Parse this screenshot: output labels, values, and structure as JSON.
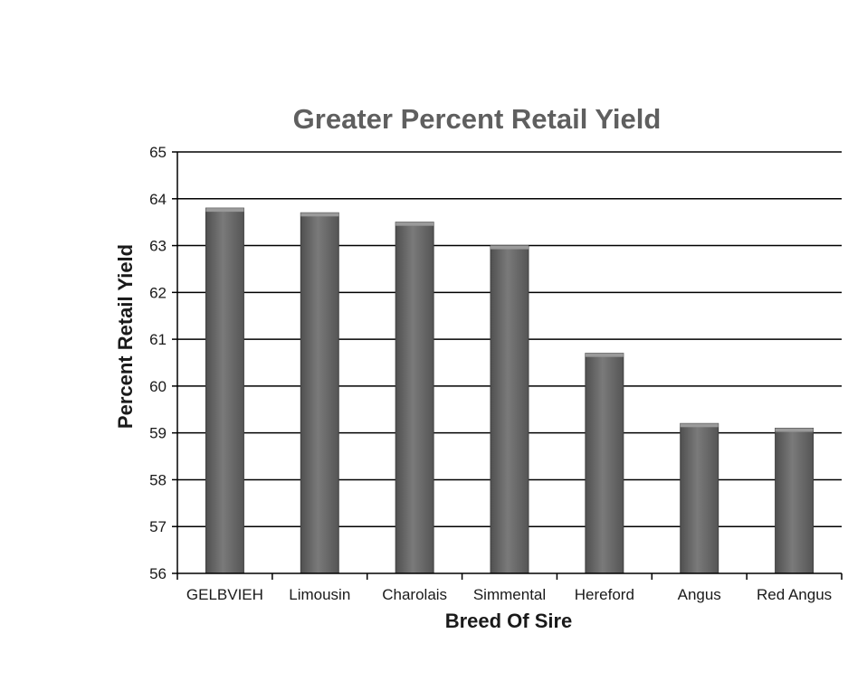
{
  "chart_data": {
    "type": "bar",
    "title": "Greater Percent Retail Yield",
    "xlabel": "Breed Of Sire",
    "ylabel": "Percent Retail Yield",
    "categories": [
      "GELBVIEH",
      "Limousin",
      "Charolais",
      "Simmental",
      "Hereford",
      "Angus",
      "Red Angus"
    ],
    "values": [
      63.8,
      63.7,
      63.5,
      63.0,
      60.7,
      59.2,
      59.1
    ],
    "ylim": [
      56,
      65
    ],
    "yticks": [
      "56",
      "57",
      "58",
      "59",
      "60",
      "61",
      "62",
      "63",
      "64",
      "65"
    ],
    "grid": true,
    "legend": "none"
  },
  "colors": {
    "bar": "#6b6b6b",
    "bar_dark": "#505050",
    "bar_light": "#8a8a8a",
    "grid": "#000000",
    "title": "#5f5f5f"
  }
}
